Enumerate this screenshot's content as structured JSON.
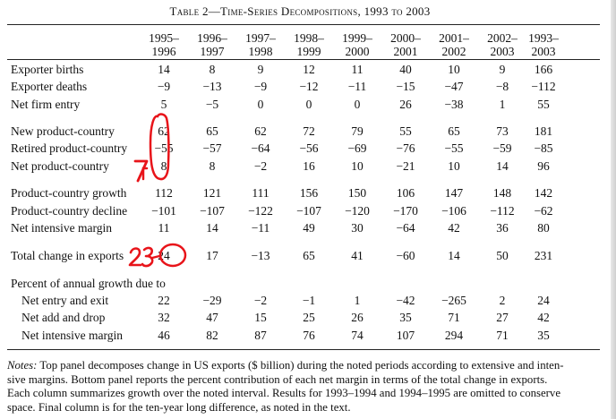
{
  "title": "Table 2—Time-Series Decompositions, 1993 to 2003",
  "columns": [
    {
      "l1": "1995–",
      "l2": "1996"
    },
    {
      "l1": "1996–",
      "l2": "1997"
    },
    {
      "l1": "1997–",
      "l2": "1998"
    },
    {
      "l1": "1998–",
      "l2": "1999"
    },
    {
      "l1": "1999–",
      "l2": "2000"
    },
    {
      "l1": "2000–",
      "l2": "2001"
    },
    {
      "l1": "2001–",
      "l2": "2002"
    },
    {
      "l1": "2002–",
      "l2": "2003"
    },
    {
      "l1": "1993–",
      "l2": "2003"
    }
  ],
  "rows": [
    {
      "label": "Exporter births",
      "values": [
        "14",
        "8",
        "9",
        "12",
        "11",
        "40",
        "10",
        "9",
        "166"
      ]
    },
    {
      "label": "Exporter deaths",
      "values": [
        "−9",
        "−13",
        "−9",
        "−12",
        "−11",
        "−15",
        "−47",
        "−8",
        "−112"
      ]
    },
    {
      "label": "Net firm entry",
      "values": [
        "5",
        "−5",
        "0",
        "0",
        "0",
        "26",
        "−38",
        "1",
        "55"
      ]
    },
    {
      "label": "New product-country",
      "values": [
        "62",
        "65",
        "62",
        "72",
        "79",
        "55",
        "65",
        "73",
        "181"
      ]
    },
    {
      "label": "Retired product-country",
      "values": [
        "−55",
        "−57",
        "−64",
        "−56",
        "−69",
        "−76",
        "−55",
        "−59",
        "−85"
      ]
    },
    {
      "label": "Net product-country",
      "values": [
        "8",
        "8",
        "−2",
        "16",
        "10",
        "−21",
        "10",
        "14",
        "96"
      ]
    },
    {
      "label": "Product-country growth",
      "values": [
        "112",
        "121",
        "111",
        "156",
        "150",
        "106",
        "147",
        "148",
        "142"
      ]
    },
    {
      "label": "Product-country decline",
      "values": [
        "−101",
        "−107",
        "−122",
        "−107",
        "−120",
        "−170",
        "−106",
        "−112",
        "−62"
      ]
    },
    {
      "label": "Net intensive margin",
      "values": [
        "11",
        "14",
        "−11",
        "49",
        "30",
        "−64",
        "42",
        "36",
        "80"
      ]
    },
    {
      "label": "Total change in exports",
      "values": [
        "24",
        "17",
        "−13",
        "65",
        "41",
        "−60",
        "14",
        "50",
        "231"
      ]
    },
    {
      "label": "Percent of annual growth due to",
      "values": [
        "",
        "",
        "",
        "",
        "",
        "",
        "",
        "",
        ""
      ]
    },
    {
      "label": "Net entry and exit",
      "values": [
        "22",
        "−29",
        "−2",
        "−1",
        "1",
        "−42",
        "−265",
        "2",
        "24"
      ]
    },
    {
      "label": "Net add and drop",
      "values": [
        "32",
        "47",
        "15",
        "25",
        "26",
        "35",
        "71",
        "27",
        "42"
      ]
    },
    {
      "label": "Net intensive margin",
      "values": [
        "46",
        "82",
        "87",
        "76",
        "74",
        "107",
        "294",
        "71",
        "35"
      ]
    }
  ],
  "notes": {
    "prefix": "Notes:",
    "line1": " Top panel decomposes change in US exports ($ billion) during the noted periods according to extensive and inten-",
    "line2": "sive margins. Bottom panel reports the percent contribution of each net margin in terms of the total change in exports.",
    "line3": "Each column summarizes growth over the noted interval. Results for 1993–1994 and 1994–1995 are omitted to conserve",
    "line4": "space. Final column is for the ten-year long difference, as noted in the text."
  },
  "annotations": {
    "left_mark": "7",
    "lower_mark": "23",
    "ink_color": "#e8141a"
  }
}
